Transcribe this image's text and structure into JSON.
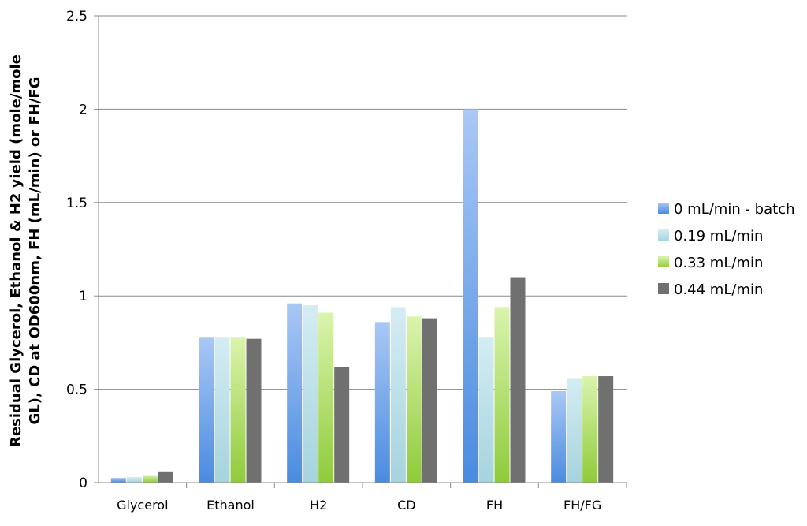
{
  "chart_data": {
    "type": "bar",
    "categories": [
      "Glycerol",
      "Ethanol",
      "H2",
      "CD",
      "FH",
      "FH/FG"
    ],
    "series": [
      {
        "name": "0 mL/min - batch",
        "color": "#4a8be0",
        "color_light": "#a9c8f5",
        "values": [
          0.025,
          0.78,
          0.96,
          0.86,
          2.0,
          0.49
        ]
      },
      {
        "name": "0.19 mL/min",
        "color": "#a6d3de",
        "color_light": "#d4edf3",
        "values": [
          0.03,
          0.78,
          0.95,
          0.94,
          0.78,
          0.56
        ]
      },
      {
        "name": "0.33 mL/min",
        "color": "#8fcb3b",
        "color_light": "#daf4ad",
        "values": [
          0.04,
          0.78,
          0.91,
          0.89,
          0.94,
          0.57
        ]
      },
      {
        "name": "0.44 mL/min",
        "color": "#707070",
        "color_light": "#707070",
        "values": [
          0.06,
          0.77,
          0.62,
          0.88,
          1.1,
          0.57
        ]
      }
    ],
    "ylim": [
      0,
      2.5
    ],
    "yticks": [
      "0",
      "0.5",
      "1",
      "1.5",
      "2",
      "2.5"
    ],
    "ylabel_line1": "Residual Glycerol, Ethanol & H2 yield (mole/mole",
    "ylabel_line2": "GL), CD at OD600nm, FH (mL/min) or FH/FG",
    "grid": true,
    "legend_position": "right"
  }
}
